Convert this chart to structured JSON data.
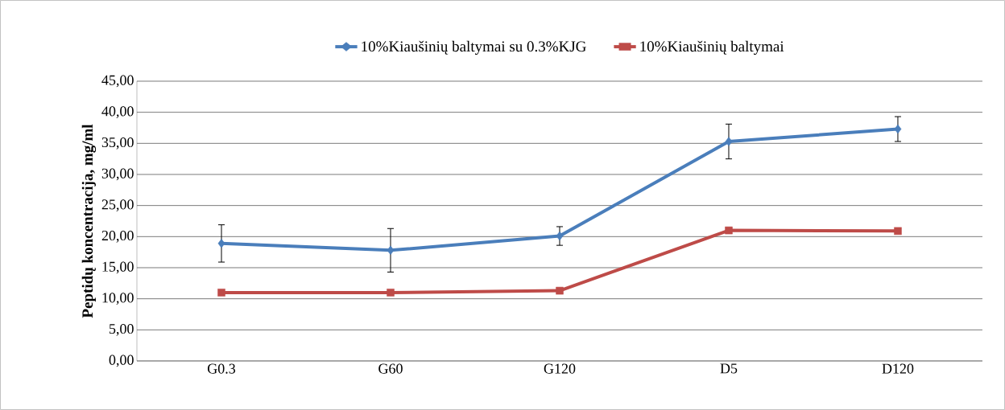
{
  "chart_data": {
    "type": "line",
    "ylabel": "Peptidų koncentracija, mg/ml",
    "categories": [
      "G0.3",
      "G60",
      "G120",
      "D5",
      "D120"
    ],
    "series": [
      {
        "name": "10%Kiaušinių baltymai su 0.3%KJG",
        "color": "#4a7ebb",
        "marker": "diamond",
        "values": [
          18.9,
          17.8,
          20.1,
          35.3,
          37.3
        ],
        "errors": [
          3.0,
          3.5,
          1.5,
          2.8,
          2.0
        ]
      },
      {
        "name": "10%Kiaušinių baltymai",
        "color": "#be4b48",
        "marker": "square",
        "values": [
          11.0,
          11.0,
          11.3,
          21.0,
          20.9
        ]
      }
    ],
    "ylim": [
      0,
      45
    ],
    "yticks": [
      {
        "value": 0,
        "label": "0,00"
      },
      {
        "value": 5,
        "label": "5,00"
      },
      {
        "value": 10,
        "label": "10,00"
      },
      {
        "value": 15,
        "label": "15,00"
      },
      {
        "value": 20,
        "label": "20,00"
      },
      {
        "value": 25,
        "label": "25,00"
      },
      {
        "value": 30,
        "label": "30,00"
      },
      {
        "value": 35,
        "label": "35,00"
      },
      {
        "value": 40,
        "label": "40,00"
      },
      {
        "value": 45,
        "label": "45,00"
      }
    ],
    "grid": "y",
    "legend": "top",
    "line_style": "solid"
  }
}
